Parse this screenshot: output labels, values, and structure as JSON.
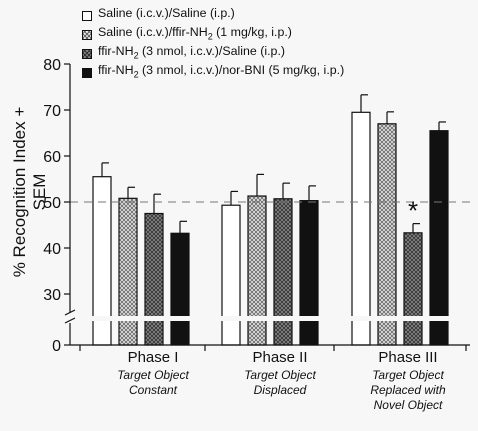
{
  "chart_data": {
    "type": "bar",
    "ylabel": "% Recognition Index + SEM",
    "ylim": [
      0,
      80
    ],
    "yticks": [
      0,
      30,
      40,
      50,
      60,
      70,
      80
    ],
    "axis_break": true,
    "reference_line": 50,
    "groups": [
      {
        "label": "Phase I",
        "sublabel": [
          "Target Object",
          "Constant"
        ]
      },
      {
        "label": "Phase II",
        "sublabel": [
          "Target Object",
          "Displaced"
        ]
      },
      {
        "label": "Phase III",
        "sublabel": [
          "Target Object",
          "Replaced with",
          "Novel Object"
        ]
      }
    ],
    "series": [
      {
        "name": "Saline (i.c.v.)/Saline (i.p.)",
        "fill": "white",
        "values": [
          55.5,
          49.3,
          69.5
        ],
        "errors": [
          3.0,
          3.0,
          3.8
        ]
      },
      {
        "name": "Saline (i.c.v.)/ffir-NH2 (1 mg/kg, i.p.)",
        "fill": "light",
        "values": [
          50.8,
          51.3,
          67.0
        ],
        "errors": [
          2.4,
          4.7,
          2.6
        ]
      },
      {
        "name": "ffir-NH2 (3 nmol, i.c.v.)/Saline (i.p.)",
        "fill": "dark",
        "values": [
          47.5,
          50.7,
          43.3
        ],
        "errors": [
          4.2,
          3.4,
          2.0
        ]
      },
      {
        "name": "ffir-NH2 (3 nmol, i.c.v.)/nor-BNI (5 mg/kg, i.p.)",
        "fill": "black",
        "values": [
          43.2,
          50.3,
          65.5
        ],
        "errors": [
          2.6,
          3.2,
          1.9
        ]
      }
    ],
    "significance": [
      {
        "group": 2,
        "series": 2,
        "mark": "*"
      }
    ],
    "legend_position": "top",
    "colors": {
      "white": "#ffffff",
      "light": "#cfcfcf",
      "dark": "#7a7a7a",
      "black": "#111111",
      "refline": "#777777"
    }
  },
  "legend": [
    {
      "prefix": "Saline (i.c.v.)/Saline (i.p.)",
      "sub": "",
      "suffix": ""
    },
    {
      "prefix": "Saline (i.c.v.)/ffir-NH",
      "sub": "2",
      "suffix": " (1 mg/kg, i.p.)"
    },
    {
      "prefix": "ffir-NH",
      "sub": "2",
      "suffix": " (3 nmol, i.c.v.)/Saline (i.p.)"
    },
    {
      "prefix": "ffir-NH",
      "sub": "2",
      "suffix": " (3 nmol, i.c.v.)/nor-BNI (5 mg/kg, i.p.)"
    }
  ]
}
